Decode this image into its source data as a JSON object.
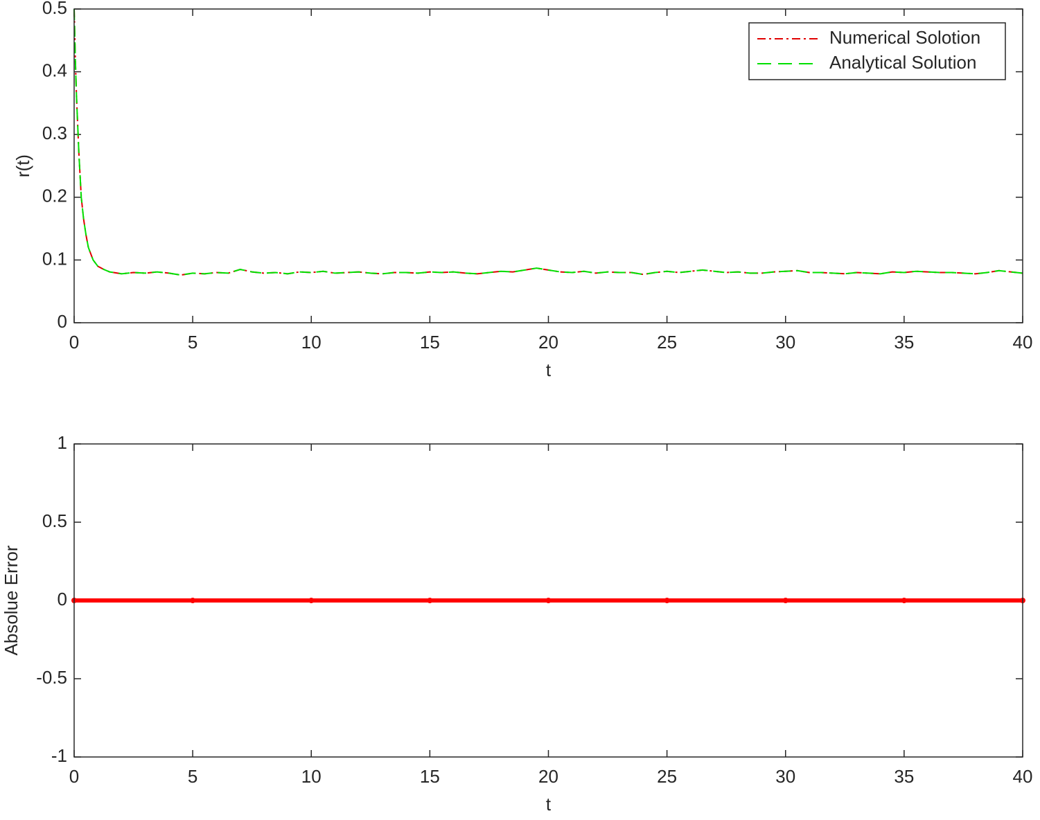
{
  "chart_data": [
    {
      "type": "line",
      "xlabel": "t",
      "ylabel": "r(t)",
      "x": [
        0,
        0.05,
        0.1,
        0.2,
        0.3,
        0.4,
        0.5,
        0.6,
        0.8,
        1,
        1.25,
        1.5,
        2,
        2.5,
        3,
        3.5,
        4,
        4.5,
        5,
        5.5,
        6,
        6.5,
        7,
        7.5,
        8,
        8.5,
        9,
        9.5,
        10,
        10.5,
        11,
        11.5,
        12,
        12.5,
        13,
        13.5,
        14,
        14.5,
        15,
        15.5,
        16,
        16.5,
        17,
        17.5,
        18,
        18.5,
        19,
        19.5,
        20,
        20.5,
        21,
        21.5,
        22,
        22.5,
        23,
        23.5,
        24,
        24.5,
        25,
        25.5,
        26,
        26.5,
        27,
        27.5,
        28,
        28.5,
        29,
        29.5,
        30,
        30.5,
        31,
        31.5,
        32,
        32.5,
        33,
        33.5,
        34,
        34.5,
        35,
        35.5,
        36,
        36.5,
        37,
        37.5,
        38,
        38.5,
        39,
        39.5,
        40
      ],
      "series": [
        {
          "name": "Numerical Solotion",
          "color": "#e00000",
          "values": [
            0.5,
            0.42,
            0.36,
            0.27,
            0.2,
            0.165,
            0.14,
            0.12,
            0.1,
            0.09,
            0.085,
            0.081,
            0.078,
            0.08,
            0.079,
            0.081,
            0.079,
            0.076,
            0.079,
            0.078,
            0.08,
            0.079,
            0.085,
            0.081,
            0.079,
            0.08,
            0.078,
            0.081,
            0.08,
            0.082,
            0.079,
            0.08,
            0.081,
            0.079,
            0.078,
            0.08,
            0.08,
            0.079,
            0.081,
            0.08,
            0.081,
            0.079,
            0.078,
            0.08,
            0.082,
            0.081,
            0.084,
            0.087,
            0.084,
            0.081,
            0.08,
            0.082,
            0.079,
            0.081,
            0.08,
            0.08,
            0.077,
            0.08,
            0.082,
            0.08,
            0.082,
            0.084,
            0.082,
            0.08,
            0.081,
            0.079,
            0.079,
            0.081,
            0.082,
            0.083,
            0.08,
            0.08,
            0.079,
            0.078,
            0.08,
            0.079,
            0.078,
            0.081,
            0.08,
            0.082,
            0.081,
            0.08,
            0.08,
            0.079,
            0.078,
            0.08,
            0.083,
            0.081,
            0.079
          ]
        },
        {
          "name": "Analytical Solution",
          "color": "#00e000",
          "values": [
            0.5,
            0.42,
            0.36,
            0.27,
            0.2,
            0.165,
            0.14,
            0.12,
            0.1,
            0.09,
            0.085,
            0.081,
            0.078,
            0.08,
            0.079,
            0.081,
            0.079,
            0.076,
            0.079,
            0.078,
            0.08,
            0.079,
            0.085,
            0.081,
            0.079,
            0.08,
            0.078,
            0.081,
            0.08,
            0.082,
            0.079,
            0.08,
            0.081,
            0.079,
            0.078,
            0.08,
            0.08,
            0.079,
            0.081,
            0.08,
            0.081,
            0.079,
            0.078,
            0.08,
            0.082,
            0.081,
            0.084,
            0.087,
            0.084,
            0.081,
            0.08,
            0.082,
            0.079,
            0.081,
            0.08,
            0.08,
            0.077,
            0.08,
            0.082,
            0.08,
            0.082,
            0.084,
            0.082,
            0.08,
            0.081,
            0.079,
            0.079,
            0.081,
            0.082,
            0.083,
            0.08,
            0.08,
            0.079,
            0.078,
            0.08,
            0.079,
            0.078,
            0.081,
            0.08,
            0.082,
            0.081,
            0.08,
            0.08,
            0.079,
            0.078,
            0.08,
            0.083,
            0.081,
            0.079
          ]
        }
      ],
      "xlim": [
        0,
        40
      ],
      "xticks": [
        0,
        5,
        10,
        15,
        20,
        25,
        30,
        35,
        40
      ],
      "ylim": [
        0,
        0.5
      ],
      "yticks": [
        0,
        0.1,
        0.2,
        0.3,
        0.4,
        0.5
      ],
      "legend": "upper right"
    },
    {
      "type": "line",
      "xlabel": "t",
      "ylabel": "Absolue Error",
      "x": [
        0,
        5,
        10,
        15,
        20,
        25,
        30,
        35,
        40
      ],
      "series": [
        {
          "color": "#ff0000",
          "values": [
            0,
            0,
            0,
            0,
            0,
            0,
            0,
            0,
            0
          ]
        }
      ],
      "xlim": [
        0,
        40
      ],
      "xticks": [
        0,
        5,
        10,
        15,
        20,
        25,
        30,
        35,
        40
      ],
      "ylim": [
        -1,
        1
      ],
      "yticks": [
        -1,
        -0.5,
        0,
        0.5,
        1
      ]
    }
  ]
}
